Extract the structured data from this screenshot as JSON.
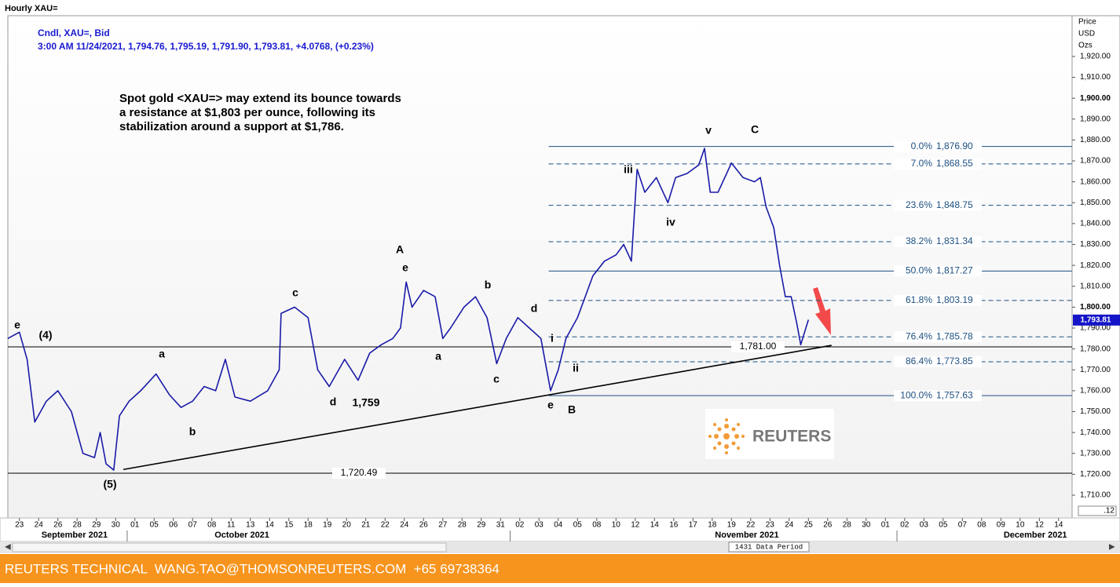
{
  "chart_data": {
    "type": "line",
    "title": "Hourly XAU=",
    "legend_lines": [
      "Cndl, XAU=, Bid",
      "3:00 AM 11/24/2021, 1,794.76, 1,795.19, 1,791.90, 1,793.81, +4.0768, (+0.23%)"
    ],
    "annotation": [
      "Spot gold <XAU=> may extend its bounce towards",
      "a resistance at $1,803 per ounce, following its",
      "stabilization around a support at $1,786."
    ],
    "axis_label": [
      "Price",
      "USD",
      "Ozs"
    ],
    "color": "#1a1aa8",
    "x": [
      -0.6,
      0,
      0.4,
      0.8,
      1.4,
      2.0,
      2.7,
      3.3,
      3.9,
      4.2,
      4.5,
      4.9,
      5.2,
      5.7,
      6.3,
      7.1,
      7.8,
      8.4,
      9.0,
      9.6,
      10.2,
      10.7,
      11.2,
      12.0,
      12.9,
      13.5,
      13.6,
      14.3,
      15.0,
      15.5,
      16.1,
      16.9,
      17.6,
      18.2,
      18.8,
      19.4,
      19.8,
      20.1,
      20.4,
      21.0,
      21.6,
      22.0,
      22.4,
      23.1,
      23.7,
      24.3,
      24.8,
      25.3,
      25.9,
      26.5,
      27.1,
      27.6,
      28.0,
      28.4,
      29.0,
      29.4,
      29.8,
      30.4,
      31.0,
      31.4,
      31.8,
      32.1,
      32.5,
      33.1,
      33.7,
      34.1,
      34.7,
      35.3,
      35.6,
      35.9,
      36.3,
      37.0,
      37.6,
      38.2,
      38.5,
      38.8,
      39.2,
      39.5,
      39.8,
      40.1,
      40.4,
      40.6,
      41.0
    ],
    "values": [
      1785,
      1788,
      1775,
      1745,
      1755,
      1760,
      1750,
      1730,
      1728,
      1740,
      1725,
      1722,
      1748,
      1755,
      1760,
      1768,
      1758,
      1752,
      1755,
      1762,
      1760,
      1775,
      1757,
      1755,
      1760,
      1770,
      1797,
      1800,
      1795,
      1770,
      1762,
      1775,
      1765,
      1778,
      1782,
      1785,
      1790,
      1812,
      1800,
      1808,
      1805,
      1785,
      1790,
      1800,
      1805,
      1795,
      1773,
      1785,
      1795,
      1790,
      1785,
      1760,
      1770,
      1785,
      1795,
      1805,
      1815,
      1822,
      1825,
      1830,
      1822,
      1866,
      1855,
      1862,
      1850,
      1862,
      1864,
      1868,
      1876,
      1855,
      1855,
      1869,
      1862,
      1860,
      1862,
      1848,
      1838,
      1820,
      1805,
      1805,
      1792,
      1782,
      1794
    ],
    "xlim": [
      -0.6,
      54.7
    ],
    "ylim": [
      1699.1,
      1939.5
    ],
    "yticks": [
      {
        "value": 1710,
        "label": "1,710.00"
      },
      {
        "value": 1720,
        "label": "1,720.00"
      },
      {
        "value": 1730,
        "label": "1,730.00"
      },
      {
        "value": 1740,
        "label": "1,740.00"
      },
      {
        "value": 1750,
        "label": "1,750.00"
      },
      {
        "value": 1760,
        "label": "1,760.00"
      },
      {
        "value": 1770,
        "label": "1,770.00"
      },
      {
        "value": 1780,
        "label": "1,780.00"
      },
      {
        "value": 1790,
        "label": "1,790.00"
      },
      {
        "value": 1800,
        "label": "1,800.00"
      },
      {
        "value": 1810,
        "label": "1,810.00"
      },
      {
        "value": 1820,
        "label": "1,820.00"
      },
      {
        "value": 1830,
        "label": "1,830.00"
      },
      {
        "value": 1840,
        "label": "1,840.00"
      },
      {
        "value": 1850,
        "label": "1,850.00"
      },
      {
        "value": 1860,
        "label": "1,860.00"
      },
      {
        "value": 1870,
        "label": "1,870.00"
      },
      {
        "value": 1880,
        "label": "1,880.00"
      },
      {
        "value": 1890,
        "label": "1,890.00"
      },
      {
        "value": 1900,
        "label": "1,900.00"
      },
      {
        "value": 1910,
        "label": "1,910.00"
      },
      {
        "value": 1920,
        "label": "1,920.00"
      }
    ],
    "last_price": {
      "value": 1793.81,
      "label": "1,793.81"
    },
    "xticks": [
      {
        "value": 0,
        "label": "23"
      },
      {
        "value": 1,
        "label": "24"
      },
      {
        "value": 2,
        "label": "26"
      },
      {
        "value": 3,
        "label": "28"
      },
      {
        "value": 4,
        "label": "29"
      },
      {
        "value": 5,
        "label": "30"
      },
      {
        "value": 6,
        "label": "01"
      },
      {
        "value": 7,
        "label": "05"
      },
      {
        "value": 8,
        "label": "06"
      },
      {
        "value": 9,
        "label": "07"
      },
      {
        "value": 10,
        "label": "08"
      },
      {
        "value": 11,
        "label": "11"
      },
      {
        "value": 12,
        "label": "13"
      },
      {
        "value": 13,
        "label": "14"
      },
      {
        "value": 14,
        "label": "15"
      },
      {
        "value": 15,
        "label": "18"
      },
      {
        "value": 16,
        "label": "19"
      },
      {
        "value": 17,
        "label": "20"
      },
      {
        "value": 18,
        "label": "21"
      },
      {
        "value": 19,
        "label": "22"
      },
      {
        "value": 20,
        "label": "24"
      },
      {
        "value": 21,
        "label": "26"
      },
      {
        "value": 22,
        "label": "27"
      },
      {
        "value": 23,
        "label": "28"
      },
      {
        "value": 24,
        "label": "29"
      },
      {
        "value": 25,
        "label": "31"
      },
      {
        "value": 26,
        "label": "02"
      },
      {
        "value": 27,
        "label": "03"
      },
      {
        "value": 28,
        "label": "04"
      },
      {
        "value": 29,
        "label": "05"
      },
      {
        "value": 30,
        "label": "08"
      },
      {
        "value": 31,
        "label": "10"
      },
      {
        "value": 32,
        "label": "12"
      },
      {
        "value": 33,
        "label": "14"
      },
      {
        "value": 34,
        "label": "16"
      },
      {
        "value": 35,
        "label": "17"
      },
      {
        "value": 36,
        "label": "18"
      },
      {
        "value": 37,
        "label": "19"
      },
      {
        "value": 38,
        "label": "22"
      },
      {
        "value": 39,
        "label": "23"
      },
      {
        "value": 40,
        "label": "24"
      },
      {
        "value": 41,
        "label": "25"
      },
      {
        "value": 42,
        "label": "26"
      },
      {
        "value": 43,
        "label": "28"
      },
      {
        "value": 44,
        "label": "30"
      },
      {
        "value": 45,
        "label": "01"
      },
      {
        "value": 46,
        "label": "02"
      },
      {
        "value": 47,
        "label": "03"
      },
      {
        "value": 48,
        "label": "05"
      },
      {
        "value": 49,
        "label": "07"
      },
      {
        "value": 50,
        "label": "08"
      },
      {
        "value": 51,
        "label": "09"
      },
      {
        "value": 52,
        "label": "10"
      },
      {
        "value": 53,
        "label": "12"
      },
      {
        "value": 54,
        "label": "14"
      }
    ],
    "months": [
      {
        "value": 0,
        "label": "September 2021"
      },
      {
        "value": 9,
        "label": "October 2021"
      },
      {
        "value": 35,
        "label": "November 2021"
      },
      {
        "value": 50,
        "label": "December 2021"
      }
    ],
    "month_breaks": [
      5.6,
      25.5,
      45.6
    ],
    "fib_levels": [
      {
        "ratio": "0.0%",
        "value": 1876.9,
        "value_label": "1,876.90",
        "style": "solid"
      },
      {
        "ratio": "7.0%",
        "value": 1868.55,
        "value_label": "1,868.55",
        "style": "dashed"
      },
      {
        "ratio": "23.6%",
        "value": 1848.75,
        "value_label": "1,848.75",
        "style": "dashed"
      },
      {
        "ratio": "38.2%",
        "value": 1831.34,
        "value_label": "1,831.34",
        "style": "dashed"
      },
      {
        "ratio": "50.0%",
        "value": 1817.27,
        "value_label": "1,817.27",
        "style": "solid"
      },
      {
        "ratio": "61.8%",
        "value": 1803.19,
        "value_label": "1,803.19",
        "style": "dashed"
      },
      {
        "ratio": "76.4%",
        "value": 1785.78,
        "value_label": "1,785.78",
        "style": "dashed"
      },
      {
        "ratio": "86.4%",
        "value": 1773.85,
        "value_label": "1,773.85",
        "style": "dashed"
      },
      {
        "ratio": "100.0%",
        "value": 1757.63,
        "value_label": "1,757.63",
        "style": "solid"
      }
    ],
    "fib_start": 27.5,
    "levels": [
      {
        "value": 1781.0,
        "label": "1,781.00"
      },
      {
        "value": 1720.49,
        "label": "1,720.49"
      }
    ],
    "trendline": {
      "x": [
        5.4,
        42.2
      ],
      "values": [
        1722.3,
        1781.7
      ]
    },
    "wave_labels": [
      "e",
      "(4)",
      "a",
      "b",
      "(5)",
      "c",
      "d",
      "1,759",
      "A",
      "e",
      "a",
      "b",
      "c",
      "d",
      "i",
      "ii",
      "e",
      "B",
      "iii",
      "iv",
      "v",
      "C"
    ],
    "data_period": "1431 Data Period",
    "corner_label": ".12",
    "logo": "REUTERS",
    "footer": "REUTERS TECHNICAL  WANG.TAO@THOMSONREUTERS.COM  +65 69738364"
  }
}
